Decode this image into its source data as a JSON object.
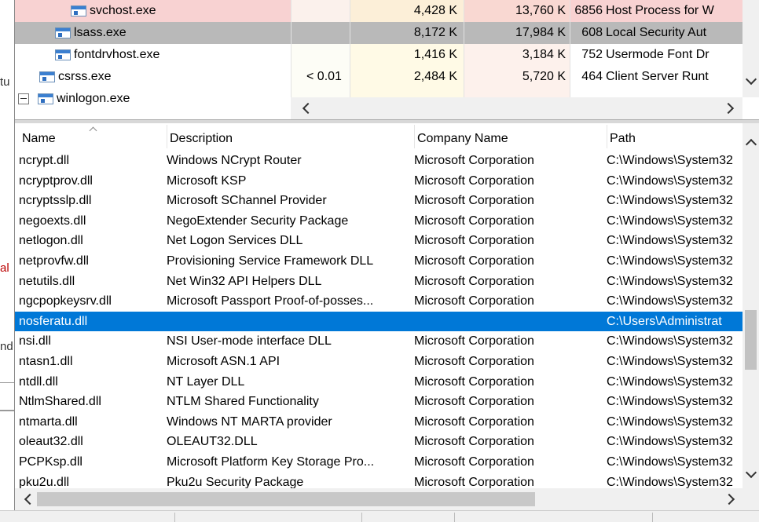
{
  "background": {
    "fragments": [
      "tu",
      "al",
      "nd"
    ]
  },
  "top_pane": {
    "rows": [
      {
        "name": "svchost.exe",
        "cpu": "",
        "private_bytes": "4,428 K",
        "working_set": "13,760 K",
        "pid": "6856",
        "description": "Host Process for W"
      },
      {
        "name": "lsass.exe",
        "cpu": "",
        "private_bytes": "8,172 K",
        "working_set": "17,984 K",
        "pid": "608",
        "description": "Local Security Aut"
      },
      {
        "name": "fontdrvhost.exe",
        "cpu": "",
        "private_bytes": "1,416 K",
        "working_set": "3,184 K",
        "pid": "752",
        "description": "Usermode Font Dr"
      },
      {
        "name": "csrss.exe",
        "cpu": "< 0.01",
        "private_bytes": "2,484 K",
        "working_set": "5,720 K",
        "pid": "464",
        "description": "Client Server Runt"
      },
      {
        "name": "winlogon.exe",
        "cpu": "",
        "private_bytes": "",
        "working_set": "",
        "pid": "",
        "description": ""
      }
    ]
  },
  "bottom_pane": {
    "headers": [
      "Name",
      "Description",
      "Company Name",
      "Path"
    ],
    "rows": [
      [
        "ncrypt.dll",
        "Windows NCrypt Router",
        "Microsoft Corporation",
        "C:\\Windows\\System32"
      ],
      [
        "ncryptprov.dll",
        "Microsoft KSP",
        "Microsoft Corporation",
        "C:\\Windows\\System32"
      ],
      [
        "ncryptsslp.dll",
        "Microsoft SChannel Provider",
        "Microsoft Corporation",
        "C:\\Windows\\System32"
      ],
      [
        "negoexts.dll",
        "NegoExtender Security Package",
        "Microsoft Corporation",
        "C:\\Windows\\System32"
      ],
      [
        "netlogon.dll",
        "Net Logon Services DLL",
        "Microsoft Corporation",
        "C:\\Windows\\System32"
      ],
      [
        "netprovfw.dll",
        "Provisioning Service Framework DLL",
        "Microsoft Corporation",
        "C:\\Windows\\System32"
      ],
      [
        "netutils.dll",
        "Net Win32 API Helpers DLL",
        "Microsoft Corporation",
        "C:\\Windows\\System32"
      ],
      [
        "ngcpopkeysrv.dll",
        "Microsoft Passport Proof-of-posses...",
        "Microsoft Corporation",
        "C:\\Windows\\System32"
      ],
      [
        "nosferatu.dll",
        "",
        "",
        "C:\\Users\\Administrat"
      ],
      [
        "nsi.dll",
        "NSI User-mode interface DLL",
        "Microsoft Corporation",
        "C:\\Windows\\System32"
      ],
      [
        "ntasn1.dll",
        "Microsoft ASN.1 API",
        "Microsoft Corporation",
        "C:\\Windows\\System32"
      ],
      [
        "ntdll.dll",
        "NT Layer DLL",
        "Microsoft Corporation",
        "C:\\Windows\\System32"
      ],
      [
        "NtlmShared.dll",
        "NTLM Shared Functionality",
        "Microsoft Corporation",
        "C:\\Windows\\System32"
      ],
      [
        "ntmarta.dll",
        "Windows NT MARTA provider",
        "Microsoft Corporation",
        "C:\\Windows\\System32"
      ],
      [
        "oleaut32.dll",
        "OLEAUT32.DLL",
        "Microsoft Corporation",
        "C:\\Windows\\System32"
      ],
      [
        "PCPKsp.dll",
        "Microsoft Platform Key Storage Pro...",
        "Microsoft Corporation",
        "C:\\Windows\\System32"
      ],
      [
        "pku2u.dll",
        "Pku2u Security Package",
        "Microsoft Corporation",
        "C:\\Windows\\System32"
      ]
    ],
    "selected_row": 8
  }
}
